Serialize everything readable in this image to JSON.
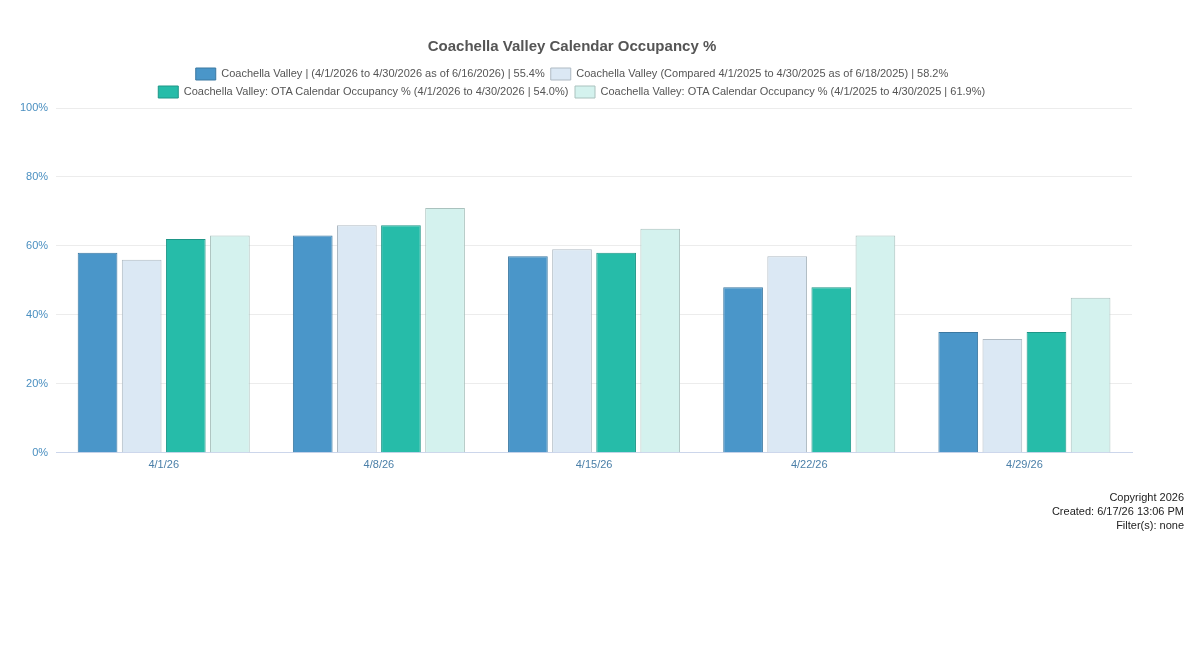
{
  "chart_data": {
    "type": "bar",
    "title": "Coachella Valley Calendar Occupancy %",
    "categories": [
      "4/1/26",
      "4/8/26",
      "4/15/26",
      "4/22/26",
      "4/29/26"
    ],
    "series": [
      {
        "name": "Coachella Valley | (4/1/2026 to 4/30/2026 as of 6/16/2026) | 55.4%",
        "color": "#4a96c9",
        "values": [
          58,
          63,
          57,
          48,
          35
        ]
      },
      {
        "name": "Coachella Valley (Compared 4/1/2025 to 4/30/2025 as of 6/18/2025) | 58.2%",
        "color": "#dbe8f4",
        "values": [
          56,
          66,
          59,
          57,
          33
        ]
      },
      {
        "name": "Coachella Valley: OTA Calendar Occupancy % (4/1/2026 to 4/30/2026 | 54.0%)",
        "color": "#26bca9",
        "values": [
          62,
          66,
          58,
          48,
          35
        ]
      },
      {
        "name": "Coachella Valley: OTA Calendar Occupancy % (4/1/2025 to 4/30/2025 | 61.9%)",
        "color": "#d4f2ee",
        "values": [
          63,
          71,
          65,
          63,
          45
        ]
      }
    ],
    "ylim": [
      0,
      100
    ],
    "yticks": [
      {
        "value": 0,
        "label": "0%"
      },
      {
        "value": 20,
        "label": "20%"
      },
      {
        "value": 40,
        "label": "40%"
      },
      {
        "value": 60,
        "label": "60%"
      },
      {
        "value": 80,
        "label": "80%"
      },
      {
        "value": 100,
        "label": "100%"
      }
    ],
    "grid": "y",
    "legend": "top",
    "annotations": [
      "Copyright 2026",
      "Created: 6/17/26 13:06 PM",
      "Filter(s): none"
    ]
  }
}
